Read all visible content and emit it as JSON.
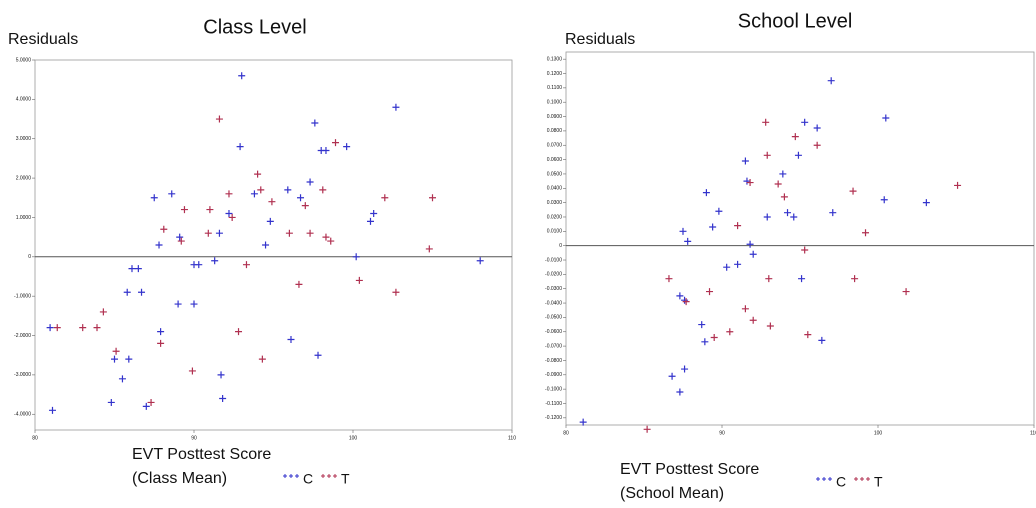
{
  "chart_data": [
    {
      "type": "scatter",
      "title": "Class Level",
      "y_label": "Residuals",
      "x_label": [
        "EVT Posttest Score",
        "(Class Mean)"
      ],
      "xlim": [
        80,
        110
      ],
      "ylim": [
        -4.4,
        5.0
      ],
      "xticks": [
        80,
        90,
        100,
        110
      ],
      "yticks": [
        {
          "value": 5,
          "label": "5.0000"
        },
        {
          "value": 4,
          "label": "4.0000"
        },
        {
          "value": 3,
          "label": "3.0000"
        },
        {
          "value": 2,
          "label": "2.0000"
        },
        {
          "value": 1,
          "label": "1.0000"
        },
        0,
        {
          "value": -1,
          "label": "-1.0000"
        },
        {
          "value": -2,
          "label": "-2.0000"
        },
        {
          "value": -3,
          "label": "-3.0000"
        },
        {
          "value": -4,
          "label": "-4.0000"
        }
      ],
      "hline": 0,
      "series": [
        {
          "name": "C",
          "color": "#3333cc",
          "x": [
            81.1,
            80.95,
            84.8,
            85.0,
            85.5,
            85.9,
            85.8,
            86.1,
            86.5,
            86.7,
            87.0,
            87.5,
            87.8,
            87.9,
            88.6,
            89.0,
            89.1,
            90.0,
            90.3,
            91.7,
            91.8,
            91.6,
            92.2,
            92.9,
            93.0,
            93.8,
            94.8,
            94.5,
            95.9,
            96.1,
            96.7,
            97.3,
            97.6,
            97.8,
            98.0,
            98.3,
            99.6,
            100.2,
            101.1,
            101.3,
            102.7,
            108.0,
            91.3,
            90.0
          ],
          "values": [
            -3.9,
            -1.8,
            -3.7,
            -2.6,
            -3.1,
            -2.6,
            -0.9,
            -0.3,
            -0.3,
            -0.9,
            -3.8,
            1.5,
            0.3,
            -1.9,
            1.6,
            -1.2,
            0.5,
            -0.2,
            -0.2,
            -3.0,
            -3.6,
            0.6,
            1.1,
            2.8,
            4.6,
            1.6,
            0.9,
            0.3,
            1.7,
            -2.1,
            1.5,
            1.9,
            3.4,
            -2.5,
            2.7,
            2.7,
            2.8,
            0.0,
            0.9,
            1.1,
            3.8,
            -0.1,
            -0.1,
            -1.2
          ]
        },
        {
          "name": "T",
          "color": "#b03050",
          "x": [
            81.4,
            83.0,
            83.9,
            84.3,
            85.1,
            87.3,
            87.9,
            88.1,
            89.4,
            89.2,
            89.9,
            91.6,
            91.0,
            92.2,
            92.4,
            92.8,
            93.3,
            94.0,
            94.2,
            94.3,
            94.9,
            96.0,
            96.6,
            97.0,
            97.3,
            98.1,
            98.3,
            98.9,
            98.6,
            100.4,
            102.0,
            102.7,
            105.0,
            104.8,
            90.9
          ],
          "values": [
            -1.8,
            -1.8,
            -1.8,
            -1.4,
            -2.4,
            -3.7,
            -2.2,
            0.7,
            1.2,
            0.4,
            -2.9,
            3.5,
            1.2,
            1.6,
            1.0,
            -1.9,
            -0.2,
            2.1,
            1.7,
            -2.6,
            1.4,
            0.6,
            -0.7,
            1.3,
            0.6,
            1.7,
            0.5,
            2.9,
            0.4,
            -0.6,
            1.5,
            -0.9,
            1.5,
            0.2,
            0.6
          ]
        }
      ]
    },
    {
      "type": "scatter",
      "title": "School Level",
      "y_label": "Residuals",
      "x_label": [
        "EVT Posttest Score",
        "(School Mean)"
      ],
      "xlim": [
        80,
        110
      ],
      "ylim": [
        -0.125,
        0.135
      ],
      "xticks": [
        80,
        90,
        100,
        110
      ],
      "yticks": [
        {
          "value": 0.13,
          "label": "0.1300"
        },
        {
          "value": 0.12,
          "label": "0.1200"
        },
        {
          "value": 0.11,
          "label": "0.1100"
        },
        {
          "value": 0.1,
          "label": "0.1000"
        },
        {
          "value": 0.09,
          "label": "0.0900"
        },
        {
          "value": 0.08,
          "label": "0.0800"
        },
        {
          "value": 0.07,
          "label": "0.0700"
        },
        {
          "value": 0.06,
          "label": "0.0600"
        },
        {
          "value": 0.05,
          "label": "0.0500"
        },
        {
          "value": 0.04,
          "label": "0.0400"
        },
        {
          "value": 0.03,
          "label": "0.0300"
        },
        {
          "value": 0.02,
          "label": "0.0200"
        },
        {
          "value": 0.01,
          "label": "0.0100"
        },
        0,
        {
          "value": -0.01,
          "label": "-0.0100"
        },
        {
          "value": -0.02,
          "label": "-0.0200"
        },
        {
          "value": -0.03,
          "label": "-0.0300"
        },
        {
          "value": -0.04,
          "label": "-0.0400"
        },
        {
          "value": -0.05,
          "label": "-0.0500"
        },
        {
          "value": -0.06,
          "label": "-0.0600"
        },
        {
          "value": -0.07,
          "label": "-0.0700"
        },
        {
          "value": -0.08,
          "label": "-0.0800"
        },
        {
          "value": -0.09,
          "label": "-0.0900"
        },
        {
          "value": -0.1,
          "label": "-0.1000"
        },
        {
          "value": -0.11,
          "label": "-0.1100"
        },
        {
          "value": -0.12,
          "label": "-0.1200"
        }
      ],
      "hline": 0,
      "series": [
        {
          "name": "C",
          "color": "#3333cc",
          "x": [
            81.1,
            86.8,
            87.3,
            87.6,
            87.3,
            87.6,
            87.5,
            87.8,
            88.7,
            88.9,
            89.0,
            89.4,
            89.8,
            90.3,
            91.0,
            91.5,
            91.6,
            91.8,
            92.0,
            92.9,
            93.9,
            94.2,
            94.6,
            94.9,
            95.3,
            95.1,
            96.1,
            96.4,
            97.0,
            97.1,
            100.5,
            100.4,
            103.1
          ],
          "values": [
            -0.123,
            -0.091,
            -0.102,
            -0.086,
            -0.035,
            -0.038,
            0.01,
            0.003,
            -0.055,
            -0.067,
            0.037,
            0.013,
            0.024,
            -0.015,
            -0.013,
            0.059,
            0.045,
            0.001,
            -0.006,
            0.02,
            0.05,
            0.023,
            0.02,
            0.063,
            0.086,
            -0.023,
            0.082,
            -0.066,
            0.115,
            0.023,
            0.089,
            0.032,
            0.03
          ]
        },
        {
          "name": "T",
          "color": "#b03050",
          "x": [
            85.2,
            86.6,
            87.7,
            89.2,
            89.5,
            90.5,
            91.0,
            91.5,
            91.8,
            92.0,
            92.8,
            92.9,
            93.0,
            93.1,
            93.6,
            94.0,
            94.7,
            95.3,
            95.5,
            96.1,
            98.4,
            98.5,
            99.2,
            101.8,
            105.1
          ],
          "values": [
            -0.128,
            -0.023,
            -0.039,
            -0.032,
            -0.064,
            -0.06,
            0.014,
            -0.044,
            0.044,
            -0.052,
            0.086,
            0.063,
            -0.023,
            -0.056,
            0.043,
            0.034,
            0.076,
            -0.003,
            -0.062,
            0.07,
            0.038,
            -0.023,
            0.009,
            -0.032,
            0.042
          ]
        }
      ]
    }
  ]
}
